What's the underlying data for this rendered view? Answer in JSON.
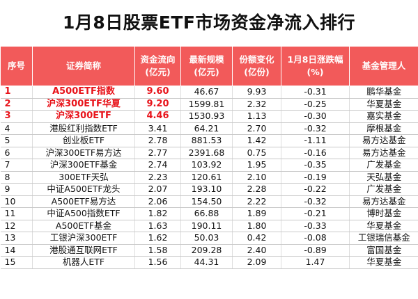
{
  "title": "1月8日股票ETF市场资金净流入排行",
  "columns": [
    [
      "序号"
    ],
    [
      "证券简称"
    ],
    [
      "资金流向",
      "(亿元)"
    ],
    [
      "最新规模",
      "(亿元)"
    ],
    [
      "份额变化",
      "(亿份)"
    ],
    [
      "1月8日涨跌幅",
      "(%)"
    ],
    [
      "基金管理人"
    ]
  ],
  "rows": [
    {
      "idx": "1",
      "name": "A500ETF指数",
      "flow": "9.60",
      "scale": "46.67",
      "share": "9.93",
      "change": "-0.31",
      "manager": "鹏华基金",
      "highlight": true
    },
    {
      "idx": "2",
      "name": "沪深300ETF华夏",
      "flow": "9.20",
      "scale": "1599.81",
      "share": "2.32",
      "change": "-0.25",
      "manager": "华夏基金",
      "highlight": true
    },
    {
      "idx": "3",
      "name": "沪深300ETF",
      "flow": "4.46",
      "scale": "1530.93",
      "share": "1.13",
      "change": "-0.30",
      "manager": "嘉实基金",
      "highlight": true
    },
    {
      "idx": "4",
      "name": "港股红利指数ETF",
      "flow": "3.41",
      "scale": "64.21",
      "share": "2.70",
      "change": "-0.32",
      "manager": "摩根基金",
      "highlight": false
    },
    {
      "idx": "5",
      "name": "创业板ETF",
      "flow": "2.78",
      "scale": "881.53",
      "share": "1.42",
      "change": "-1.11",
      "manager": "易方达基金",
      "highlight": false
    },
    {
      "idx": "6",
      "name": "沪深300ETF易方达",
      "flow": "2.77",
      "scale": "2391.68",
      "share": "0.75",
      "change": "-0.16",
      "manager": "易方达基金",
      "highlight": false
    },
    {
      "idx": "7",
      "name": "沪深300ETF基金",
      "flow": "2.74",
      "scale": "103.92",
      "share": "1.95",
      "change": "-0.35",
      "manager": "广发基金",
      "highlight": false
    },
    {
      "idx": "8",
      "name": "300ETF天弘",
      "flow": "2.23",
      "scale": "120.61",
      "share": "2.10",
      "change": "-0.19",
      "manager": "天弘基金",
      "highlight": false
    },
    {
      "idx": "9",
      "name": "中证A500ETF龙头",
      "flow": "2.07",
      "scale": "193.10",
      "share": "2.28",
      "change": "-0.22",
      "manager": "广发基金",
      "highlight": false
    },
    {
      "idx": "10",
      "name": "A500ETF易方达",
      "flow": "2.06",
      "scale": "154.50",
      "share": "2.22",
      "change": "-0.32",
      "manager": "易方达基金",
      "highlight": false
    },
    {
      "idx": "11",
      "name": "中证A500指数ETF",
      "flow": "1.82",
      "scale": "66.88",
      "share": "1.89",
      "change": "-0.21",
      "manager": "博时基金",
      "highlight": false
    },
    {
      "idx": "12",
      "name": "A500ETF基金",
      "flow": "1.63",
      "scale": "190.11",
      "share": "1.80",
      "change": "-0.33",
      "manager": "华夏基金",
      "highlight": false
    },
    {
      "idx": "13",
      "name": "工银沪深300ETF",
      "flow": "1.62",
      "scale": "50.03",
      "share": "0.42",
      "change": "-0.08",
      "manager": "工银瑞信基金",
      "highlight": false
    },
    {
      "idx": "14",
      "name": "港股通互联网ETF",
      "flow": "1.58",
      "scale": "209.28",
      "share": "2.40",
      "change": "-0.89",
      "manager": "富国基金",
      "highlight": false
    },
    {
      "idx": "15",
      "name": "机器人ETF",
      "flow": "1.56",
      "scale": "44.31",
      "share": "2.09",
      "change": "1.47",
      "manager": "华夏基金",
      "highlight": false
    }
  ],
  "colors": {
    "header_bg": "#f25a5a",
    "highlight_text": "#e8141b"
  }
}
